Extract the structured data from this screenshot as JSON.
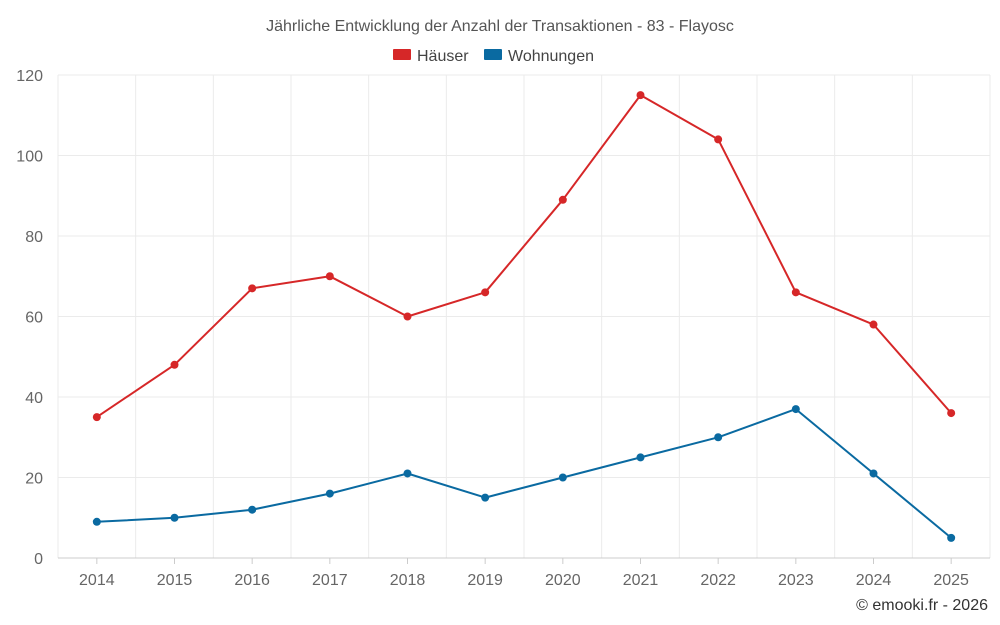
{
  "chart_data": {
    "type": "line",
    "title": "Jährliche Entwicklung der Anzahl der Transaktionen - 83 - Flayosc",
    "categories": [
      "2014",
      "2015",
      "2016",
      "2017",
      "2018",
      "2019",
      "2020",
      "2021",
      "2022",
      "2023",
      "2024",
      "2025"
    ],
    "series": [
      {
        "name": "Häuser",
        "color": "#d62728",
        "values": [
          35,
          48,
          67,
          70,
          60,
          66,
          89,
          115,
          104,
          66,
          58,
          36
        ]
      },
      {
        "name": "Wohnungen",
        "color": "#0a6aa1",
        "values": [
          9,
          10,
          12,
          16,
          21,
          15,
          20,
          25,
          30,
          37,
          21,
          5
        ]
      }
    ],
    "yticks": [
      0,
      20,
      40,
      60,
      80,
      100,
      120
    ],
    "ylim": [
      0,
      120
    ],
    "xlabel": "",
    "ylabel": "",
    "grid": true,
    "legend": "top-center"
  },
  "credit": "© emooki.fr - 2026"
}
